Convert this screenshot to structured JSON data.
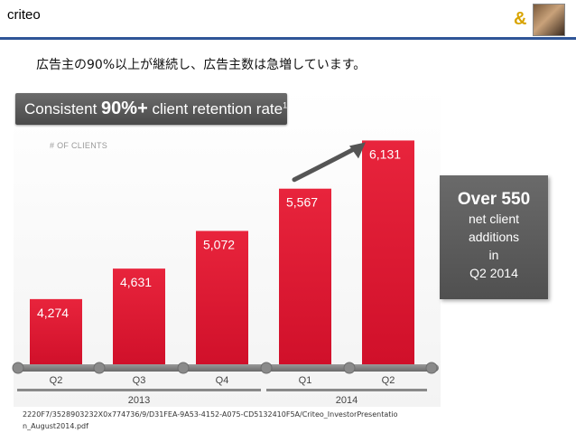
{
  "header": {
    "brand": "criteo",
    "logo_mark": "&"
  },
  "subtitle": "広告主の90%以上が継続し、広告主数は急増しています。",
  "banner": {
    "prefix": "Consistent ",
    "highlight": "90%+",
    "suffix": " client retention rate",
    "footnote": "1"
  },
  "callout": {
    "line1": "Over 550",
    "line2": "net client",
    "line3": "additions",
    "line4": "in",
    "line5": "Q2 2014"
  },
  "footer": {
    "text": "2220F7/3528903232X0x774736/9/D31FEA-9A53-4152-A075-CD5132410F5A/Criteo_InvestorPresentation_August2014.pdf"
  },
  "chart_data": {
    "type": "bar",
    "ylabel": "# OF CLIENTS",
    "categories": [
      "Q2",
      "Q3",
      "Q4",
      "Q1",
      "Q2"
    ],
    "values": [
      4274,
      4631,
      5072,
      5567,
      6131
    ],
    "value_labels": [
      "4,274",
      "4,631",
      "5,072",
      "5,567",
      "6,131"
    ],
    "year_groups": [
      {
        "label": "2013",
        "start": 0,
        "end": 2
      },
      {
        "label": "2014",
        "start": 3,
        "end": 4
      }
    ],
    "ylim": [
      3500,
      6400
    ],
    "bar_color": "#d0102a",
    "grid": false,
    "legend": "none"
  }
}
